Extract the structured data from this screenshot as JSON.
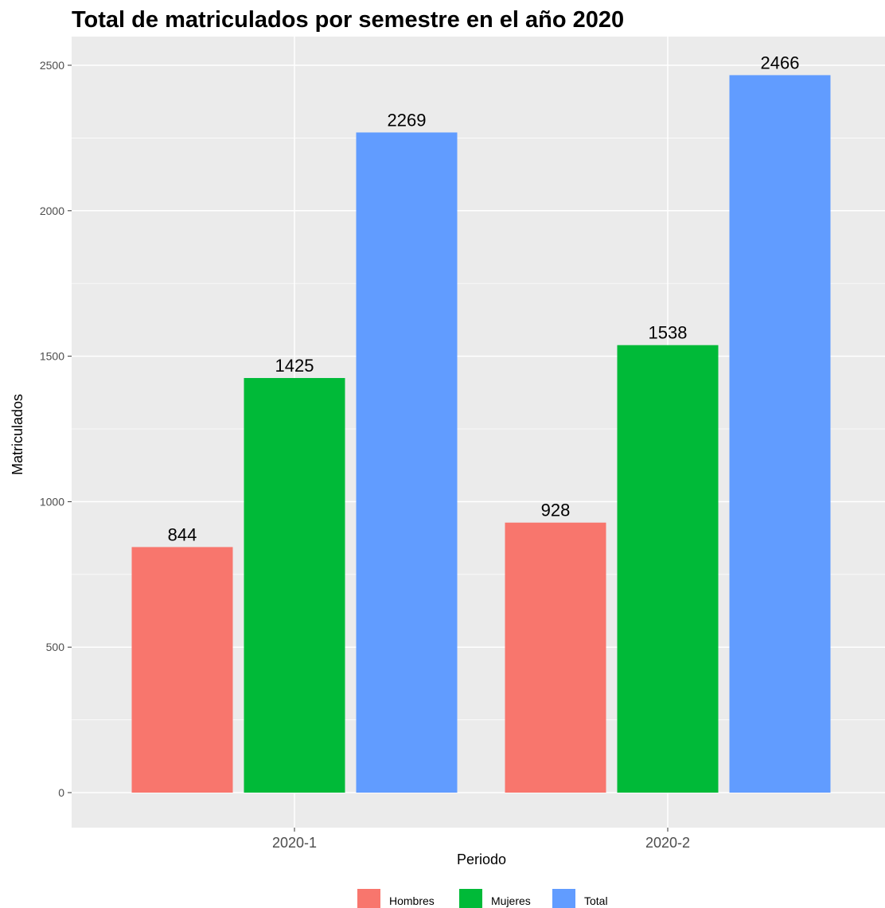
{
  "chart_data": {
    "type": "bar",
    "title": "Total de matriculados por semestre en el año 2020",
    "xlabel": "Periodo",
    "ylabel": "Matriculados",
    "categories": [
      "2020-1",
      "2020-2"
    ],
    "series": [
      {
        "name": "Hombres",
        "color": "#F8766D",
        "values": [
          844,
          928
        ]
      },
      {
        "name": "Mujeres",
        "color": "#00BA38",
        "values": [
          1425,
          1538
        ]
      },
      {
        "name": "Total",
        "color": "#619CFF",
        "values": [
          2269,
          2466
        ]
      }
    ],
    "ylim": [
      -150,
      2600
    ],
    "yticks": [
      0,
      500,
      1000,
      1500,
      2000,
      2500
    ],
    "grid": true,
    "legend_position": "bottom",
    "panel_background": "#EBEBEB"
  }
}
